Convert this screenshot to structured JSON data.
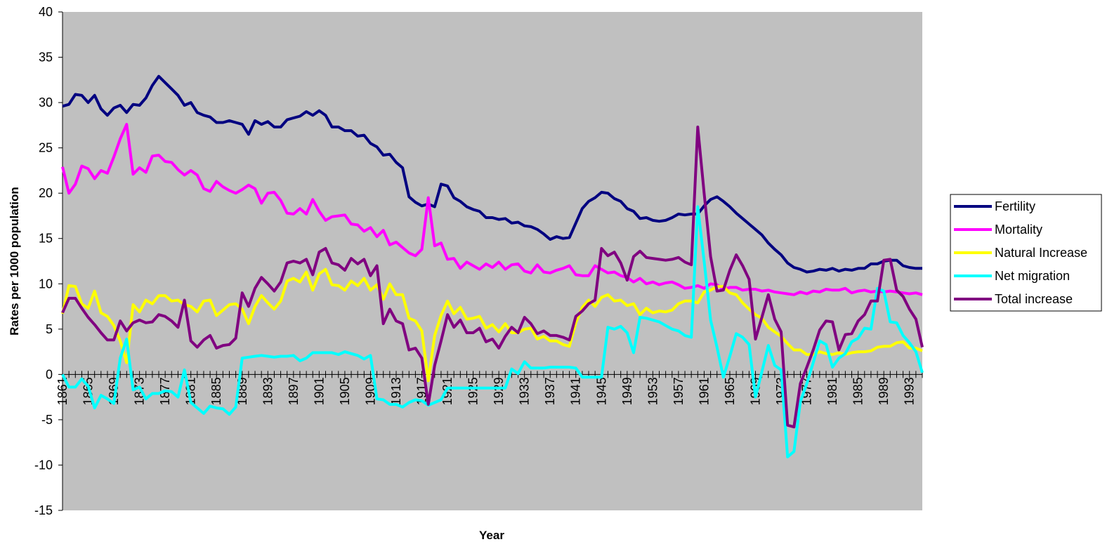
{
  "chart_data": {
    "type": "line",
    "y_label": "Rates per 1000 population",
    "x_label": "Year",
    "ylim": [
      -15,
      40
    ],
    "yticks": [
      -15,
      -10,
      -5,
      0,
      5,
      10,
      15,
      20,
      25,
      30,
      35,
      40
    ],
    "plot_background": "#c0c0c0",
    "legend": "right",
    "categories": [
      "1861",
      null,
      null,
      null,
      "1865",
      null,
      null,
      null,
      "1869",
      null,
      null,
      null,
      "1873",
      null,
      null,
      null,
      "1877",
      null,
      null,
      null,
      "1881",
      null,
      null,
      null,
      "1885",
      null,
      null,
      null,
      "1889",
      null,
      null,
      null,
      "1893",
      null,
      null,
      null,
      "1897",
      null,
      null,
      null,
      "1901",
      null,
      null,
      null,
      "1905",
      null,
      null,
      null,
      "1909",
      null,
      null,
      null,
      "1913",
      null,
      null,
      null,
      "1917",
      null,
      null,
      null,
      "1921",
      null,
      null,
      null,
      "1925",
      null,
      null,
      null,
      "1929",
      null,
      null,
      null,
      "1933",
      null,
      null,
      null,
      "1937",
      null,
      null,
      null,
      "1941",
      null,
      null,
      null,
      "1945",
      null,
      null,
      null,
      "1949",
      null,
      null,
      null,
      "1953",
      null,
      null,
      null,
      "1957",
      null,
      null,
      null,
      "1961",
      null,
      null,
      null,
      "1965",
      null,
      null,
      null,
      "1969",
      null,
      null,
      null,
      "1973",
      null,
      null,
      null,
      "1977",
      null,
      null,
      null,
      "1981",
      null,
      null,
      null,
      "1985",
      null,
      null,
      null,
      "1989",
      null,
      null,
      null,
      "1993",
      null,
      null
    ],
    "series": [
      {
        "name": "Fertility",
        "color": "#000080",
        "values": [
          29.6,
          29.8,
          30.9,
          30.8,
          30.0,
          30.8,
          29.3,
          28.6,
          29.4,
          29.7,
          28.9,
          29.8,
          29.7,
          30.5,
          31.9,
          32.9,
          32.2,
          31.5,
          30.8,
          29.7,
          30.0,
          28.9,
          28.6,
          28.4,
          27.8,
          27.8,
          28.0,
          27.8,
          27.6,
          26.5,
          28.0,
          27.6,
          27.9,
          27.3,
          27.3,
          28.1,
          28.3,
          28.5,
          29.0,
          28.6,
          29.1,
          28.6,
          27.3,
          27.3,
          26.9,
          26.9,
          26.3,
          26.4,
          25.5,
          25.1,
          24.2,
          24.3,
          23.4,
          22.8,
          19.6,
          19.0,
          18.6,
          18.8,
          18.5,
          21.0,
          20.8,
          19.5,
          19.1,
          18.5,
          18.2,
          18.0,
          17.3,
          17.3,
          17.1,
          17.2,
          16.7,
          16.8,
          16.4,
          16.3,
          16.0,
          15.5,
          14.9,
          15.2,
          15.0,
          15.1,
          16.7,
          18.3,
          19.1,
          19.5,
          20.1,
          20.0,
          19.4,
          19.1,
          18.3,
          18.0,
          17.2,
          17.3,
          17.0,
          16.9,
          17.0,
          17.3,
          17.7,
          17.6,
          17.7,
          17.7,
          18.6,
          19.3,
          19.6,
          19.1,
          18.5,
          17.8,
          17.2,
          16.6,
          16.0,
          15.4,
          14.5,
          13.8,
          13.2,
          12.3,
          11.8,
          11.6,
          11.3,
          11.4,
          11.6,
          11.5,
          11.7,
          11.4,
          11.6,
          11.5,
          11.7,
          11.7,
          12.2,
          12.2,
          12.5,
          12.6,
          12.6,
          12.0,
          11.8,
          11.7,
          11.7
        ]
      },
      {
        "name": "Mortality",
        "color": "#ff00ff",
        "values": [
          22.9,
          20.0,
          21.0,
          23.0,
          22.7,
          21.6,
          22.5,
          22.2,
          24.0,
          26.0,
          27.6,
          22.1,
          22.8,
          22.3,
          24.1,
          24.2,
          23.5,
          23.4,
          22.6,
          22.0,
          22.5,
          22.0,
          20.5,
          20.2,
          21.3,
          20.7,
          20.3,
          20.0,
          20.4,
          20.9,
          20.5,
          18.9,
          20.0,
          20.1,
          19.2,
          17.8,
          17.7,
          18.3,
          17.7,
          19.3,
          18.0,
          17.0,
          17.4,
          17.5,
          17.6,
          16.6,
          16.5,
          15.8,
          16.2,
          15.2,
          15.9,
          14.3,
          14.6,
          14.0,
          13.4,
          13.1,
          13.8,
          19.5,
          14.2,
          14.5,
          12.7,
          12.8,
          11.7,
          12.4,
          12.0,
          11.6,
          12.2,
          11.8,
          12.4,
          11.6,
          12.1,
          12.2,
          11.4,
          11.2,
          12.1,
          11.3,
          11.2,
          11.5,
          11.7,
          12.0,
          11.0,
          10.9,
          10.9,
          12.0,
          11.6,
          11.2,
          11.3,
          10.9,
          10.7,
          10.2,
          10.6,
          10.0,
          10.2,
          9.9,
          10.1,
          10.2,
          9.9,
          9.5,
          9.6,
          9.8,
          9.5,
          10.0,
          9.9,
          9.4,
          9.6,
          9.6,
          9.3,
          9.4,
          9.4,
          9.2,
          9.3,
          9.1,
          9.0,
          8.9,
          8.8,
          9.1,
          8.9,
          9.2,
          9.1,
          9.4,
          9.3,
          9.3,
          9.5,
          9.0,
          9.2,
          9.3,
          9.1,
          9.2,
          9.1,
          9.2,
          9.1,
          9.0,
          8.9,
          9.0,
          8.8
        ]
      },
      {
        "name": "Natural Increase",
        "color": "#ffff00",
        "values": [
          6.7,
          9.8,
          9.7,
          7.8,
          7.3,
          9.2,
          6.8,
          6.4,
          5.4,
          3.7,
          1.3,
          7.7,
          6.9,
          8.2,
          7.8,
          8.7,
          8.7,
          8.1,
          8.2,
          7.7,
          7.5,
          6.9,
          8.1,
          8.2,
          6.5,
          7.1,
          7.7,
          7.8,
          7.2,
          5.6,
          7.5,
          8.7,
          7.9,
          7.2,
          8.1,
          10.3,
          10.6,
          10.2,
          11.3,
          9.3,
          11.1,
          11.6,
          9.9,
          9.8,
          9.3,
          10.3,
          9.8,
          10.6,
          9.3,
          9.9,
          8.3,
          10.0,
          8.8,
          8.8,
          6.2,
          5.9,
          4.8,
          -0.7,
          4.3,
          6.5,
          8.1,
          6.7,
          7.4,
          6.1,
          6.2,
          6.4,
          5.1,
          5.5,
          4.7,
          5.6,
          4.6,
          4.6,
          5.0,
          5.1,
          3.9,
          4.2,
          3.7,
          3.7,
          3.3,
          3.1,
          5.7,
          7.4,
          8.2,
          7.5,
          8.5,
          8.8,
          8.1,
          8.2,
          7.6,
          7.8,
          6.6,
          7.3,
          6.8,
          7.0,
          6.9,
          7.1,
          7.8,
          8.1,
          8.1,
          7.9,
          9.1,
          9.3,
          9.7,
          9.7,
          9.0,
          8.8,
          7.9,
          7.2,
          6.6,
          6.2,
          5.2,
          4.7,
          4.2,
          3.4,
          2.7,
          2.7,
          2.2,
          2.2,
          2.5,
          2.3,
          2.2,
          2.4,
          2.2,
          2.4,
          2.5,
          2.5,
          2.6,
          3.0,
          3.1,
          3.1,
          3.5,
          3.6,
          2.9,
          2.9,
          2.6
        ]
      },
      {
        "name": "Net migration",
        "color": "#00ffff",
        "values": [
          0.0,
          -1.4,
          -1.4,
          -0.5,
          -1.3,
          -3.7,
          -2.3,
          -2.7,
          -3.2,
          1.8,
          3.9,
          -1.7,
          -1.4,
          -2.7,
          -2.1,
          -2.1,
          -1.8,
          -1.9,
          -2.5,
          0.5,
          -3.1,
          -3.7,
          -4.3,
          -3.5,
          -3.7,
          -3.8,
          -4.4,
          -3.6,
          1.8,
          1.9,
          2.0,
          2.1,
          2.0,
          1.9,
          2.0,
          2.0,
          2.1,
          1.5,
          1.8,
          2.4,
          2.4,
          2.4,
          2.4,
          2.2,
          2.5,
          2.3,
          2.1,
          1.7,
          2.1,
          -2.7,
          -2.8,
          -3.3,
          -3.3,
          -3.6,
          -3.1,
          -2.8,
          -2.9,
          -3.4,
          -3.1,
          -2.8,
          -1.5,
          -1.5,
          -1.5,
          -1.5,
          -1.5,
          -1.5,
          -1.5,
          -1.5,
          -1.5,
          -1.5,
          0.6,
          0.1,
          1.4,
          0.7,
          0.7,
          0.7,
          0.8,
          0.8,
          0.8,
          0.8,
          0.7,
          -0.3,
          -0.3,
          -0.3,
          -0.3,
          5.2,
          5.0,
          5.3,
          4.6,
          2.4,
          6.3,
          6.2,
          6.0,
          5.8,
          5.4,
          5.0,
          4.8,
          4.3,
          4.1,
          18.5,
          12.5,
          6.0,
          3.0,
          -0.3,
          2.0,
          4.5,
          4.1,
          3.3,
          -2.5,
          0.3,
          3.2,
          1.0,
          0.5,
          -9.1,
          -8.5,
          -3.0,
          -1.0,
          1.3,
          3.7,
          3.3,
          0.8,
          1.8,
          2.3,
          3.6,
          4.0,
          5.1,
          5.0,
          9.5,
          9.2,
          5.8,
          5.7,
          4.3,
          3.5,
          2.5,
          0.2
        ]
      },
      {
        "name": "Total increase",
        "color": "#800080",
        "values": [
          6.8,
          8.4,
          8.4,
          7.3,
          6.3,
          5.5,
          4.6,
          3.8,
          3.8,
          5.9,
          4.8,
          5.7,
          6.0,
          5.7,
          5.8,
          6.6,
          6.4,
          5.9,
          5.2,
          8.2,
          3.7,
          3.0,
          3.8,
          4.3,
          2.9,
          3.2,
          3.3,
          4.0,
          9.0,
          7.5,
          9.5,
          10.7,
          10.0,
          9.2,
          10.2,
          12.3,
          12.5,
          12.3,
          12.7,
          11.0,
          13.5,
          13.9,
          12.3,
          12.1,
          11.5,
          12.8,
          12.2,
          12.7,
          10.9,
          12.0,
          5.6,
          7.2,
          5.9,
          5.6,
          2.7,
          2.9,
          1.8,
          -3.3,
          1.0,
          3.7,
          6.6,
          5.2,
          6.0,
          4.6,
          4.6,
          5.1,
          3.6,
          3.9,
          2.9,
          4.2,
          5.2,
          4.6,
          6.3,
          5.6,
          4.5,
          4.8,
          4.3,
          4.3,
          4.1,
          3.8,
          6.4,
          7.0,
          7.8,
          8.2,
          13.9,
          13.1,
          13.5,
          12.3,
          10.4,
          13.0,
          13.6,
          12.9,
          12.8,
          12.7,
          12.6,
          12.7,
          12.9,
          12.4,
          12.1,
          27.3,
          20.0,
          13.0,
          9.2,
          9.3,
          11.5,
          13.2,
          12.0,
          10.5,
          3.9,
          6.3,
          8.8,
          6.1,
          4.7,
          -5.6,
          -5.8,
          -1.0,
          0.8,
          2.7,
          4.9,
          5.9,
          5.8,
          2.7,
          4.4,
          4.5,
          5.9,
          6.6,
          8.1,
          8.1,
          12.6,
          12.7,
          9.3,
          8.6,
          7.2,
          6.1,
          3.0
        ]
      }
    ]
  }
}
